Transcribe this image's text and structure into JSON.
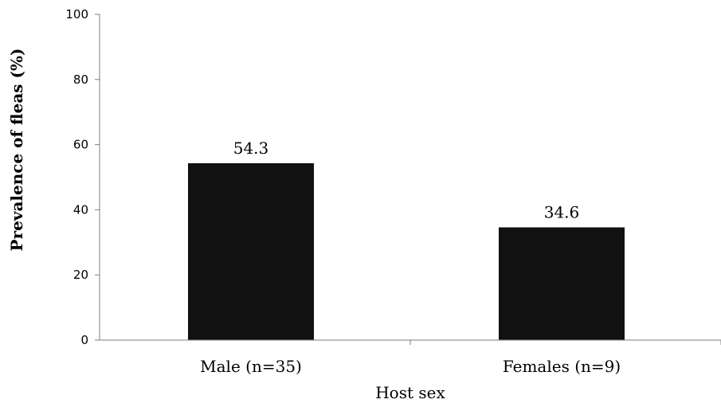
{
  "chart_data": {
    "type": "bar",
    "categories": [
      "Male (n=35)",
      "Females (n=9)"
    ],
    "values": [
      54.3,
      34.6
    ],
    "data_labels": [
      "54.3",
      "34.6"
    ],
    "xlabel": "Host sex",
    "ylabel": "Prevalence of fleas (%)",
    "ylim": [
      0,
      100
    ],
    "yticks": [
      0,
      20,
      40,
      60,
      80,
      100
    ],
    "grid": false,
    "legend": "none",
    "bar_color": "#111111"
  }
}
